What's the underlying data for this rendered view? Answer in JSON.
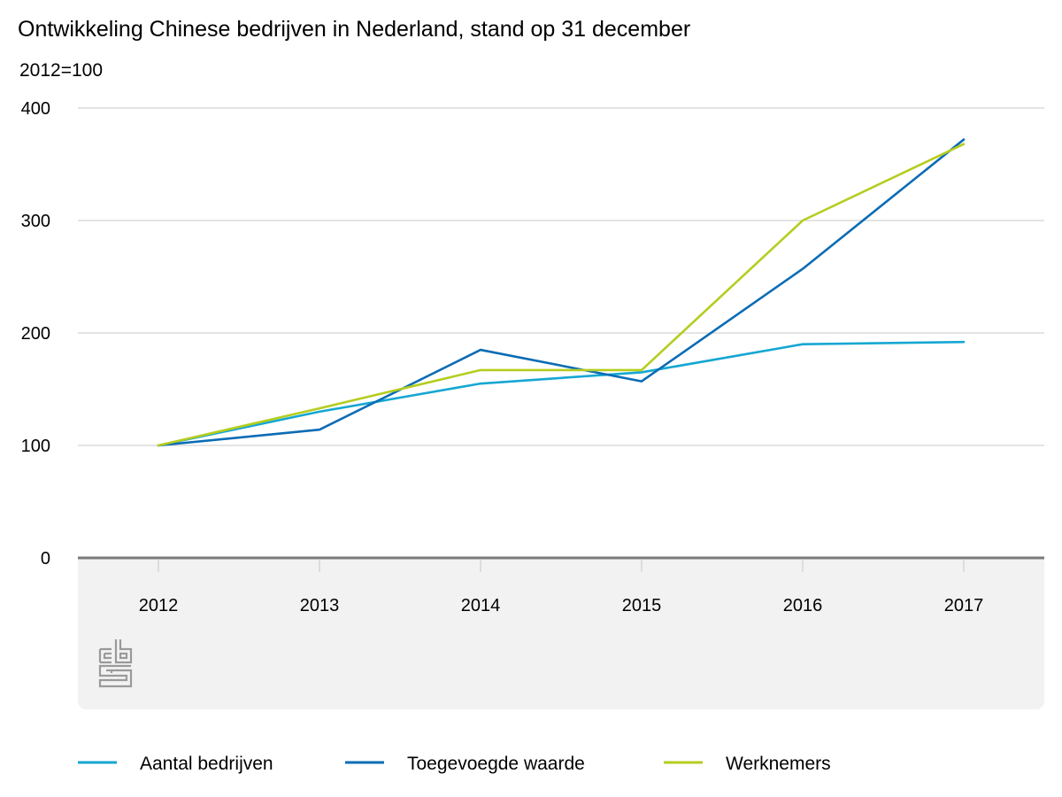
{
  "chart_data": {
    "type": "line",
    "title": "Ontwikkeling Chinese bedrijven in Nederland, stand op 31 december",
    "subtitle": "2012=100",
    "xlabel": "",
    "ylabel": "",
    "categories": [
      "2012",
      "2013",
      "2014",
      "2015",
      "2016",
      "2017"
    ],
    "ylim": [
      0,
      400
    ],
    "yticks": [
      0,
      100,
      200,
      300,
      400
    ],
    "grid": true,
    "legend_position": "bottom",
    "series": [
      {
        "name": "Aantal bedrijven",
        "color": "#16a7d2",
        "values": [
          100,
          130,
          155,
          165,
          190,
          192
        ]
      },
      {
        "name": "Toegevoegde waarde",
        "color": "#0b6cb5",
        "values": [
          100,
          114,
          185,
          157,
          257,
          372
        ]
      },
      {
        "name": "Werknemers",
        "color": "#b5cd1f",
        "values": [
          100,
          133,
          167,
          167,
          300,
          368
        ]
      }
    ]
  },
  "branding": {
    "logo_icon": "cbs-logo-icon"
  }
}
